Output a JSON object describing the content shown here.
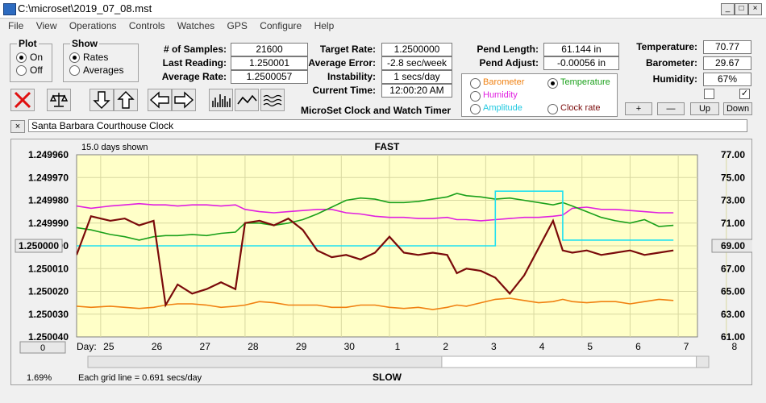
{
  "window": {
    "title": "C:\\microset\\2019_07_08.mst",
    "min": "_",
    "max": "□",
    "close": "×"
  },
  "menu": [
    "File",
    "View",
    "Operations",
    "Controls",
    "Watches",
    "GPS",
    "Configure",
    "Help"
  ],
  "plot_group": {
    "title": "Plot",
    "on": "On",
    "off": "Off"
  },
  "show_group": {
    "title": "Show",
    "rates": "Rates",
    "averages": "Averages"
  },
  "stats": {
    "samples_label": "# of Samples:",
    "samples": "21600",
    "last_label": "Last Reading:",
    "last": "1.250001",
    "avg_rate_label": "Average Rate:",
    "avg_rate": "1.2500057",
    "target_label": "Target Rate:",
    "target": "1.2500000",
    "avg_err_label": "Average Error:",
    "avg_err": "-2.8 sec/week",
    "instab_label": "Instability:",
    "instab": "1 secs/day",
    "time_label": "Current Time:",
    "time": "12:00:20 AM",
    "pend_len_label": "Pend Length:",
    "pend_len": "61.144 in",
    "pend_adj_label": "Pend Adjust:",
    "pend_adj": "-0.00056 in",
    "temp_label": "Temperature:",
    "temp": "70.77",
    "baro_label": "Barometer:",
    "baro": "29.67",
    "hum_label": "Humidity:",
    "hum": "67%"
  },
  "app_caption": "MicroSet Clock and Watch Timer",
  "sensor_options": {
    "barometer": "Barometer",
    "temperature": "Temperature",
    "humidity": "Humidity",
    "amplitude": "Amplitude",
    "clock_rate": "Clock rate"
  },
  "adjust_buttons": {
    "plus": "+",
    "minus": "—",
    "up": "Up",
    "down": "Down"
  },
  "clock_name": "Santa Barbara Courthouse Clock",
  "clear_btn": "×",
  "chart_data": {
    "type": "line",
    "top_label": "FAST",
    "bottom_label": "SLOW",
    "days_shown": "15.0 days shown",
    "grid_note": "Each grid line = 0.691 secs/day",
    "percent": "1.69%",
    "day_label": "Day:",
    "x_ticks": [
      "25",
      "26",
      "27",
      "28",
      "29",
      "30",
      "1",
      "2",
      "3",
      "4",
      "5",
      "6",
      "7",
      "8"
    ],
    "left_ticks": [
      "1.249960",
      "1.249970",
      "1.249980",
      "1.249990",
      "1.250000",
      "1.250010",
      "1.250020",
      "1.250030",
      "1.250040"
    ],
    "right_ticks": [
      "77.00",
      "75.00",
      "73.00",
      "71.00",
      "69.00",
      "67.00",
      "65.00",
      "63.00",
      "61.00"
    ],
    "left_box": "1.250000",
    "right_box": "69.00",
    "zero_box": "0",
    "colors": {
      "rate": "#7a0a0a",
      "temperature": "#1aa01a",
      "humidity": "#e020e0",
      "barometer": "#f08010",
      "amplitude": "#20e0f0",
      "plot_bg": "#ffffc8",
      "grid": "#d8d8a0"
    },
    "series": [
      {
        "name": "Rate",
        "color": "#7a0a0a",
        "values": [
          1.250004,
          1.249987,
          1.249989,
          1.249988,
          1.249991,
          1.249989,
          1.250026,
          1.250017,
          1.250021,
          1.250019,
          1.250016,
          1.250019,
          1.24999,
          1.249989,
          1.249991,
          1.249988,
          1.249993,
          1.250002,
          1.250005,
          1.250004,
          1.250006,
          1.250003,
          1.249996,
          1.250003,
          1.250004,
          1.250003,
          1.250004,
          1.250012,
          1.25001,
          1.250011,
          1.250014,
          1.250021,
          1.250013,
          1.250001,
          1.249989,
          1.250002,
          1.250003,
          1.250002,
          1.250004,
          1.250003,
          1.250002,
          1.250004,
          1.250003,
          1.250002
        ]
      },
      {
        "name": "Temperature",
        "color": "#1aa01a",
        "values": [
          70.6,
          70.4,
          70.0,
          69.8,
          69.5,
          69.8,
          69.9,
          69.9,
          70.0,
          69.9,
          70.1,
          70.2,
          71.0,
          71.0,
          70.8,
          71.0,
          71.3,
          71.8,
          72.4,
          73.0,
          73.2,
          73.1,
          72.8,
          72.8,
          72.9,
          73.1,
          73.3,
          73.6,
          73.4,
          73.3,
          73.1,
          73.2,
          73.0,
          72.8,
          72.6,
          72.8,
          72.5,
          72.0,
          71.5,
          71.2,
          71.0,
          71.3,
          70.7,
          70.8
        ]
      },
      {
        "name": "Humidity",
        "color": "#e020e0",
        "values": [
          72.5,
          72.3,
          72.5,
          72.6,
          72.7,
          72.6,
          72.6,
          72.5,
          72.6,
          72.6,
          72.5,
          72.6,
          72.2,
          72.0,
          71.9,
          72.0,
          72.1,
          72.2,
          72.2,
          71.9,
          71.8,
          71.6,
          71.5,
          71.5,
          71.4,
          71.4,
          71.5,
          71.3,
          71.3,
          71.2,
          71.3,
          71.4,
          71.5,
          71.5,
          71.6,
          71.7,
          72.3,
          72.4,
          72.2,
          72.2,
          72.1,
          72.0,
          71.9,
          71.9
        ]
      },
      {
        "name": "Barometer",
        "color": "#f08010",
        "values": [
          63.7,
          63.6,
          63.7,
          63.6,
          63.5,
          63.6,
          63.8,
          63.9,
          63.9,
          63.8,
          63.6,
          63.7,
          63.8,
          64.1,
          64.0,
          63.8,
          63.8,
          63.8,
          63.6,
          63.6,
          63.8,
          63.8,
          63.6,
          63.5,
          63.6,
          63.4,
          63.6,
          63.8,
          63.7,
          64.0,
          64.3,
          64.4,
          64.2,
          64.0,
          64.1,
          64.3,
          64.1,
          64.0,
          64.1,
          64.1,
          63.9,
          64.1,
          64.3,
          64.2
        ]
      },
      {
        "name": "Amplitude",
        "color": "#20e0f0",
        "values": [
          69.0,
          69.0,
          69.0,
          69.0,
          69.0,
          69.0,
          69.0,
          69.0,
          69.0,
          69.0,
          69.0,
          69.0,
          69.0,
          69.0,
          69.0,
          69.0,
          69.0,
          69.0,
          69.0,
          69.0,
          69.0,
          69.0,
          69.0,
          69.0,
          69.0,
          69.0,
          69.0,
          69.0,
          69.0,
          69.0,
          73.8,
          73.8,
          73.8,
          73.8,
          73.8,
          69.5,
          69.5,
          69.5,
          69.5,
          69.5,
          69.5,
          69.5,
          69.5,
          69.5
        ]
      }
    ],
    "x": [
      0,
      0.3,
      0.7,
      1.0,
      1.3,
      1.6,
      1.85,
      2.1,
      2.4,
      2.7,
      3.0,
      3.3,
      3.5,
      3.8,
      4.1,
      4.4,
      4.7,
      5.0,
      5.3,
      5.6,
      5.9,
      6.2,
      6.5,
      6.8,
      7.1,
      7.4,
      7.7,
      7.9,
      8.1,
      8.4,
      8.7,
      9.0,
      9.3,
      9.6,
      9.9,
      10.1,
      10.3,
      10.6,
      10.9,
      11.2,
      11.5,
      11.8,
      12.1,
      12.4
    ],
    "xlim": [
      0,
      12.9
    ],
    "ylim_left": [
      1.24996,
      1.25004
    ],
    "ylim_right": [
      61,
      77
    ]
  }
}
